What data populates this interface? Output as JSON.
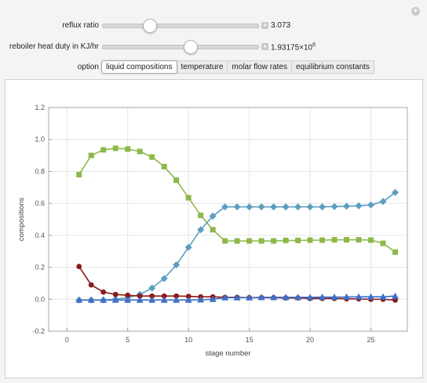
{
  "controls": {
    "reflux": {
      "label": "reflux ratio",
      "value": "3.073",
      "position": 0.35
    },
    "reboiler": {
      "label": "reboiler heat duty in KJ/hr",
      "value": "1.93175×10",
      "value_exp": "6",
      "position": 0.545
    },
    "option_label": "option",
    "tabs": [
      {
        "label": "liquid compositions",
        "active": true
      },
      {
        "label": "temperature",
        "active": false
      },
      {
        "label": "molar flow rates",
        "active": false
      },
      {
        "label": "equilibrium constants",
        "active": false
      }
    ]
  },
  "chart_data": {
    "type": "line",
    "xlabel": "stage number",
    "ylabel": "compositions",
    "xlim": [
      -1.5,
      28
    ],
    "ylim": [
      -0.2,
      1.2
    ],
    "xticks": [
      0,
      5,
      10,
      15,
      20,
      25
    ],
    "yticks": [
      -0.2,
      0.0,
      0.2,
      0.4,
      0.6,
      0.8,
      1.0,
      1.2
    ],
    "grid": true,
    "x": [
      1,
      2,
      3,
      4,
      5,
      6,
      7,
      8,
      9,
      10,
      11,
      12,
      13,
      14,
      15,
      16,
      17,
      18,
      19,
      20,
      21,
      22,
      23,
      24,
      25,
      26,
      27
    ],
    "series": [
      {
        "color": "#8db84a",
        "marker": "square",
        "values": [
          0.78,
          0.9,
          0.935,
          0.945,
          0.94,
          0.925,
          0.89,
          0.83,
          0.745,
          0.635,
          0.525,
          0.435,
          0.365,
          0.365,
          0.365,
          0.365,
          0.365,
          0.368,
          0.368,
          0.37,
          0.37,
          0.372,
          0.372,
          0.372,
          0.37,
          0.35,
          0.295
        ]
      },
      {
        "color": "#5a9fc0",
        "marker": "diamond",
        "values": [
          -0.005,
          -0.005,
          -0.005,
          0.0,
          0.01,
          0.03,
          0.07,
          0.13,
          0.215,
          0.325,
          0.435,
          0.52,
          0.578,
          0.578,
          0.578,
          0.578,
          0.578,
          0.578,
          0.578,
          0.578,
          0.578,
          0.58,
          0.582,
          0.585,
          0.59,
          0.612,
          0.668
        ]
      },
      {
        "color": "#8b1a1a",
        "marker": "circle",
        "values": [
          0.205,
          0.09,
          0.045,
          0.03,
          0.025,
          0.02,
          0.02,
          0.02,
          0.02,
          0.018,
          0.015,
          0.015,
          0.012,
          0.012,
          0.01,
          0.01,
          0.01,
          0.008,
          0.008,
          0.005,
          0.005,
          0.005,
          0.003,
          0.002,
          0.0,
          0.0,
          -0.005
        ]
      },
      {
        "color": "#3f6fc8",
        "marker": "triangle",
        "values": [
          -0.005,
          -0.005,
          -0.005,
          -0.005,
          -0.005,
          -0.005,
          -0.005,
          -0.005,
          -0.005,
          -0.005,
          -0.003,
          0.0,
          0.01,
          0.01,
          0.01,
          0.012,
          0.012,
          0.012,
          0.012,
          0.012,
          0.013,
          0.013,
          0.014,
          0.015,
          0.015,
          0.015,
          0.02
        ]
      }
    ]
  }
}
